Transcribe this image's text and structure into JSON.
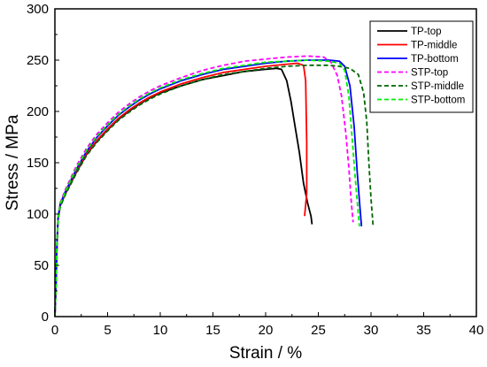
{
  "chart_data": {
    "type": "line",
    "xlabel": "Strain / %",
    "ylabel": "Stress / MPa",
    "xlim": [
      0,
      40
    ],
    "ylim": [
      0,
      300
    ],
    "x_ticks": [
      0,
      5,
      10,
      15,
      20,
      25,
      30,
      35,
      40
    ],
    "y_ticks": [
      0,
      50,
      100,
      150,
      200,
      250,
      300
    ],
    "grid": false,
    "legend_position": "top-right",
    "series": [
      {
        "name": "TP-top",
        "color": "#000000",
        "dash": "solid",
        "points": [
          [
            0,
            0
          ],
          [
            0.1,
            30
          ],
          [
            0.2,
            70
          ],
          [
            0.3,
            95
          ],
          [
            0.5,
            108
          ],
          [
            1,
            120
          ],
          [
            2,
            140
          ],
          [
            3,
            158
          ],
          [
            4,
            171
          ],
          [
            5,
            182
          ],
          [
            6,
            192
          ],
          [
            7,
            200
          ],
          [
            8,
            207
          ],
          [
            9,
            213
          ],
          [
            10,
            218
          ],
          [
            12,
            225
          ],
          [
            14,
            231
          ],
          [
            16,
            235
          ],
          [
            18,
            239
          ],
          [
            20,
            241
          ],
          [
            21,
            242
          ],
          [
            21.5,
            241
          ],
          [
            22,
            230
          ],
          [
            22.4,
            210
          ],
          [
            22.8,
            185
          ],
          [
            23.2,
            160
          ],
          [
            23.6,
            130
          ],
          [
            24.0,
            110
          ],
          [
            24.3,
            98
          ],
          [
            24.4,
            90
          ]
        ]
      },
      {
        "name": "TP-middle",
        "color": "#ff0000",
        "dash": "solid",
        "points": [
          [
            0,
            0
          ],
          [
            0.1,
            30
          ],
          [
            0.2,
            72
          ],
          [
            0.3,
            96
          ],
          [
            0.5,
            109
          ],
          [
            1,
            121
          ],
          [
            2,
            141
          ],
          [
            3,
            159
          ],
          [
            4,
            172
          ],
          [
            5,
            183
          ],
          [
            6,
            193
          ],
          [
            7,
            201
          ],
          [
            8,
            208
          ],
          [
            9,
            214
          ],
          [
            10,
            219
          ],
          [
            12,
            227
          ],
          [
            14,
            233
          ],
          [
            16,
            238
          ],
          [
            18,
            241
          ],
          [
            20,
            244
          ],
          [
            22,
            246
          ],
          [
            23,
            247
          ],
          [
            23.6,
            245
          ],
          [
            23.8,
            230
          ],
          [
            23.9,
            170
          ],
          [
            23.9,
            120
          ],
          [
            23.7,
            98
          ]
        ]
      },
      {
        "name": "TP-bottom",
        "color": "#0000ff",
        "dash": "solid",
        "points": [
          [
            0,
            0
          ],
          [
            0.1,
            32
          ],
          [
            0.2,
            74
          ],
          [
            0.3,
            97
          ],
          [
            0.5,
            110
          ],
          [
            1,
            122
          ],
          [
            2,
            143
          ],
          [
            3,
            161
          ],
          [
            4,
            175
          ],
          [
            5,
            186
          ],
          [
            6,
            196
          ],
          [
            7,
            204
          ],
          [
            8,
            211
          ],
          [
            9,
            217
          ],
          [
            10,
            222
          ],
          [
            12,
            230
          ],
          [
            14,
            236
          ],
          [
            16,
            241
          ],
          [
            18,
            244
          ],
          [
            20,
            247
          ],
          [
            22,
            249
          ],
          [
            24,
            250
          ],
          [
            26,
            250
          ],
          [
            27,
            249
          ],
          [
            27.5,
            244
          ],
          [
            28,
            225
          ],
          [
            28.4,
            185
          ],
          [
            28.7,
            140
          ],
          [
            29.0,
            100
          ],
          [
            29.1,
            88
          ]
        ]
      },
      {
        "name": "STP-top",
        "color": "#ff00ff",
        "dash": "dashed",
        "points": [
          [
            0,
            0
          ],
          [
            0.1,
            32
          ],
          [
            0.2,
            75
          ],
          [
            0.3,
            98
          ],
          [
            0.5,
            111
          ],
          [
            1,
            124
          ],
          [
            2,
            146
          ],
          [
            3,
            164
          ],
          [
            4,
            178
          ],
          [
            5,
            189
          ],
          [
            6,
            199
          ],
          [
            7,
            207
          ],
          [
            8,
            214
          ],
          [
            9,
            220
          ],
          [
            10,
            225
          ],
          [
            12,
            233
          ],
          [
            14,
            240
          ],
          [
            16,
            245
          ],
          [
            18,
            249
          ],
          [
            20,
            251
          ],
          [
            22,
            253
          ],
          [
            24,
            254
          ],
          [
            25.5,
            253
          ],
          [
            26.2,
            248
          ],
          [
            26.8,
            235
          ],
          [
            27.2,
            215
          ],
          [
            27.6,
            180
          ],
          [
            27.9,
            145
          ],
          [
            28.1,
            115
          ],
          [
            28.3,
            92
          ]
        ]
      },
      {
        "name": "STP-middle",
        "color": "#006600",
        "dash": "dashed",
        "points": [
          [
            0,
            0
          ],
          [
            0.1,
            30
          ],
          [
            0.2,
            70
          ],
          [
            0.3,
            95
          ],
          [
            0.5,
            107
          ],
          [
            1,
            119
          ],
          [
            2,
            139
          ],
          [
            3,
            157
          ],
          [
            4,
            170
          ],
          [
            5,
            181
          ],
          [
            6,
            191
          ],
          [
            7,
            199
          ],
          [
            8,
            206
          ],
          [
            9,
            212
          ],
          [
            10,
            217
          ],
          [
            12,
            225
          ],
          [
            14,
            231
          ],
          [
            16,
            236
          ],
          [
            18,
            239
          ],
          [
            20,
            242
          ],
          [
            22,
            244
          ],
          [
            24,
            245
          ],
          [
            26,
            245
          ],
          [
            27,
            244
          ],
          [
            28,
            242
          ],
          [
            28.8,
            236
          ],
          [
            29.3,
            218
          ],
          [
            29.6,
            190
          ],
          [
            29.8,
            150
          ],
          [
            30.0,
            115
          ],
          [
            30.2,
            88
          ]
        ]
      },
      {
        "name": "STP-bottom",
        "color": "#00ee00",
        "dash": "dashed",
        "points": [
          [
            0,
            0
          ],
          [
            0.1,
            31
          ],
          [
            0.2,
            73
          ],
          [
            0.3,
            97
          ],
          [
            0.5,
            110
          ],
          [
            1,
            122
          ],
          [
            2,
            144
          ],
          [
            3,
            162
          ],
          [
            4,
            176
          ],
          [
            5,
            187
          ],
          [
            6,
            197
          ],
          [
            7,
            205
          ],
          [
            8,
            212
          ],
          [
            9,
            218
          ],
          [
            10,
            223
          ],
          [
            12,
            231
          ],
          [
            14,
            237
          ],
          [
            16,
            242
          ],
          [
            18,
            245
          ],
          [
            20,
            248
          ],
          [
            22,
            249
          ],
          [
            24,
            250
          ],
          [
            26,
            249
          ],
          [
            27,
            247
          ],
          [
            27.5,
            240
          ],
          [
            27.9,
            215
          ],
          [
            28.2,
            175
          ],
          [
            28.5,
            135
          ],
          [
            28.8,
            100
          ],
          [
            28.9,
            88
          ]
        ]
      }
    ]
  }
}
